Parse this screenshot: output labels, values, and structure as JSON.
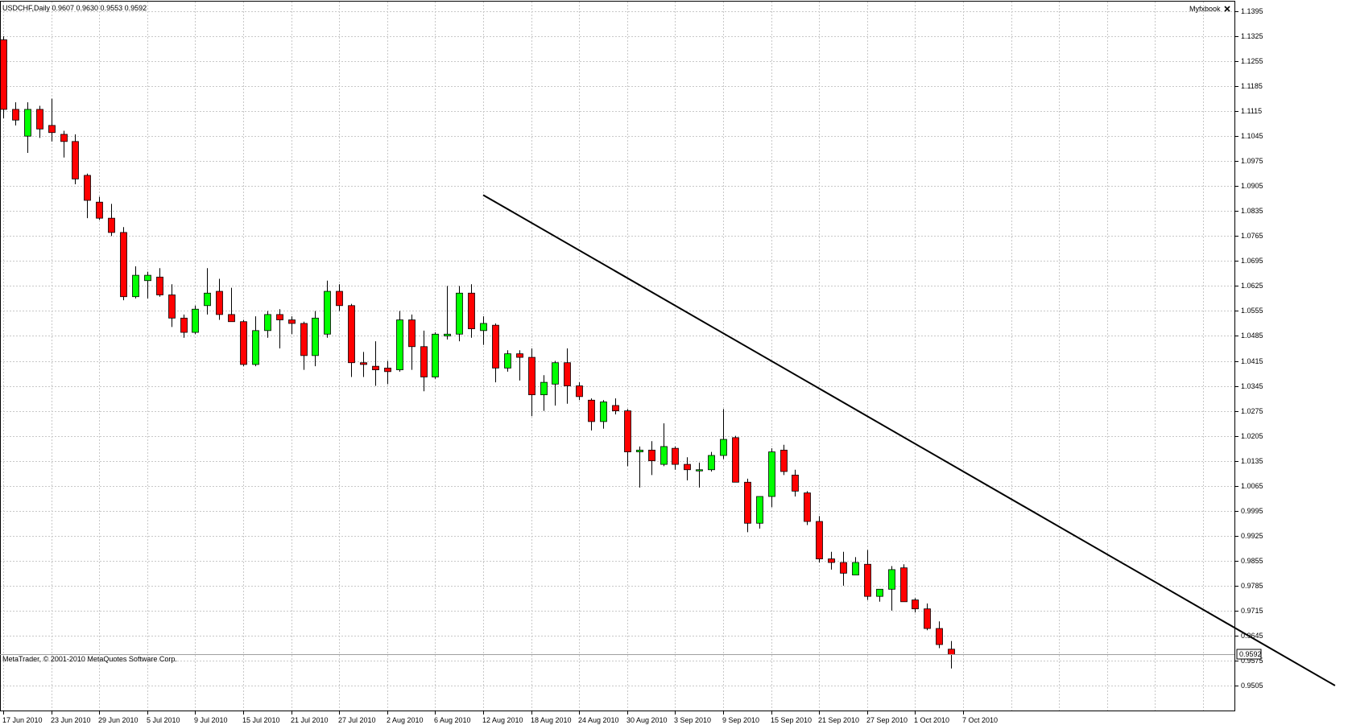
{
  "header": {
    "symbol_info": "USDCHF,Daily  0.9607 0.9630 0.9553 0.9592",
    "indicator_label": "Myfxbook",
    "close_icon": "close-icon"
  },
  "copyright": "MetaTrader, © 2001-2010 MetaQuotes Software Corp.",
  "colors": {
    "background": "#ffffff",
    "grid": "#c8c8c8",
    "bull": "#00ff00",
    "bear": "#ff0000",
    "wick": "#000000",
    "trendline": "#000000",
    "axis": "#000000"
  },
  "chart_data": {
    "type": "candlestick",
    "symbol": "USDCHF",
    "timeframe": "Daily",
    "ylim": [
      0.9505,
      1.1395
    ],
    "y_ticks": [
      "1.1395",
      "1.1325",
      "1.1255",
      "1.1185",
      "1.1115",
      "1.1045",
      "1.0975",
      "1.0905",
      "1.0835",
      "1.0765",
      "1.0695",
      "1.0625",
      "1.0555",
      "1.0485",
      "1.0415",
      "1.0345",
      "1.0275",
      "1.0205",
      "1.0135",
      "1.0065",
      "0.9995",
      "0.9925",
      "0.9855",
      "0.9785",
      "0.9715",
      "0.9645",
      "0.9575",
      "0.9505"
    ],
    "x_tick_labels": [
      "17 Jun 2010",
      "23 Jun 2010",
      "29 Jun 2010",
      "5 Jul 2010",
      "9 Jul 2010",
      "15 Jul 2010",
      "21 Jul 2010",
      "27 Jul 2010",
      "2 Aug 2010",
      "6 Aug 2010",
      "12 Aug 2010",
      "18 Aug 2010",
      "24 Aug 2010",
      "30 Aug 2010",
      "3 Sep 2010",
      "9 Sep 2010",
      "15 Sep 2010",
      "21 Sep 2010",
      "27 Sep 2010",
      "1 Oct 2010",
      "7 Oct 2010"
    ],
    "current_price": "0.9592",
    "candles": [
      {
        "o": 1.1315,
        "h": 1.1325,
        "l": 1.1095,
        "c": 1.112
      },
      {
        "o": 1.112,
        "h": 1.114,
        "l": 1.1075,
        "c": 1.109
      },
      {
        "o": 1.1045,
        "h": 1.114,
        "l": 1.0998,
        "c": 1.112
      },
      {
        "o": 1.112,
        "h": 1.113,
        "l": 1.104,
        "c": 1.1065
      },
      {
        "o": 1.1075,
        "h": 1.115,
        "l": 1.103,
        "c": 1.1055
      },
      {
        "o": 1.105,
        "h": 1.106,
        "l": 1.0985,
        "c": 1.103
      },
      {
        "o": 1.103,
        "h": 1.105,
        "l": 1.091,
        "c": 1.0925
      },
      {
        "o": 1.0935,
        "h": 1.094,
        "l": 1.0815,
        "c": 1.0865
      },
      {
        "o": 1.086,
        "h": 1.0875,
        "l": 1.081,
        "c": 1.0815
      },
      {
        "o": 1.0815,
        "h": 1.0855,
        "l": 1.0765,
        "c": 1.0775
      },
      {
        "o": 1.0775,
        "h": 1.079,
        "l": 1.0585,
        "c": 1.0595
      },
      {
        "o": 1.0595,
        "h": 1.068,
        "l": 1.059,
        "c": 1.0655
      },
      {
        "o": 1.064,
        "h": 1.0665,
        "l": 1.059,
        "c": 1.0655
      },
      {
        "o": 1.065,
        "h": 1.0675,
        "l": 1.0595,
        "c": 1.06
      },
      {
        "o": 1.06,
        "h": 1.063,
        "l": 1.051,
        "c": 1.0535
      },
      {
        "o": 1.0535,
        "h": 1.0545,
        "l": 1.048,
        "c": 1.0495
      },
      {
        "o": 1.0495,
        "h": 1.057,
        "l": 1.049,
        "c": 1.056
      },
      {
        "o": 1.057,
        "h": 1.0675,
        "l": 1.0545,
        "c": 1.0605
      },
      {
        "o": 1.061,
        "h": 1.0645,
        "l": 1.053,
        "c": 1.0545
      },
      {
        "o": 1.0545,
        "h": 1.062,
        "l": 1.0525,
        "c": 1.0525
      },
      {
        "o": 1.0525,
        "h": 1.053,
        "l": 1.04,
        "c": 1.0405
      },
      {
        "o": 1.0405,
        "h": 1.054,
        "l": 1.04,
        "c": 1.05
      },
      {
        "o": 1.05,
        "h": 1.0555,
        "l": 1.048,
        "c": 1.0545
      },
      {
        "o": 1.0545,
        "h": 1.056,
        "l": 1.045,
        "c": 1.053
      },
      {
        "o": 1.053,
        "h": 1.054,
        "l": 1.049,
        "c": 1.052
      },
      {
        "o": 1.052,
        "h": 1.0525,
        "l": 1.039,
        "c": 1.043
      },
      {
        "o": 1.043,
        "h": 1.0555,
        "l": 1.04,
        "c": 1.0535
      },
      {
        "o": 1.049,
        "h": 1.064,
        "l": 1.048,
        "c": 1.061
      },
      {
        "o": 1.061,
        "h": 1.063,
        "l": 1.0555,
        "c": 1.057
      },
      {
        "o": 1.057,
        "h": 1.0575,
        "l": 1.037,
        "c": 1.041
      },
      {
        "o": 1.041,
        "h": 1.044,
        "l": 1.037,
        "c": 1.0405
      },
      {
        "o": 1.04,
        "h": 1.047,
        "l": 1.0345,
        "c": 1.039
      },
      {
        "o": 1.0395,
        "h": 1.0415,
        "l": 1.035,
        "c": 1.0385
      },
      {
        "o": 1.039,
        "h": 1.0555,
        "l": 1.0385,
        "c": 1.053
      },
      {
        "o": 1.053,
        "h": 1.0545,
        "l": 1.039,
        "c": 1.0455
      },
      {
        "o": 1.0455,
        "h": 1.05,
        "l": 1.033,
        "c": 1.037
      },
      {
        "o": 1.037,
        "h": 1.0495,
        "l": 1.0365,
        "c": 1.049
      },
      {
        "o": 1.0485,
        "h": 1.0625,
        "l": 1.0475,
        "c": 1.049
      },
      {
        "o": 1.049,
        "h": 1.0625,
        "l": 1.047,
        "c": 1.0605
      },
      {
        "o": 1.0605,
        "h": 1.063,
        "l": 1.048,
        "c": 1.0505
      },
      {
        "o": 1.05,
        "h": 1.054,
        "l": 1.046,
        "c": 1.052
      },
      {
        "o": 1.0515,
        "h": 1.052,
        "l": 1.0355,
        "c": 1.0395
      },
      {
        "o": 1.0395,
        "h": 1.0445,
        "l": 1.0385,
        "c": 1.0435
      },
      {
        "o": 1.0435,
        "h": 1.0445,
        "l": 1.036,
        "c": 1.0425
      },
      {
        "o": 1.0425,
        "h": 1.045,
        "l": 1.026,
        "c": 1.032
      },
      {
        "o": 1.032,
        "h": 1.0375,
        "l": 1.0275,
        "c": 1.0355
      },
      {
        "o": 1.035,
        "h": 1.0415,
        "l": 1.029,
        "c": 1.041
      },
      {
        "o": 1.041,
        "h": 1.045,
        "l": 1.0295,
        "c": 1.0345
      },
      {
        "o": 1.0345,
        "h": 1.0355,
        "l": 1.0305,
        "c": 1.0315
      },
      {
        "o": 1.0305,
        "h": 1.031,
        "l": 1.022,
        "c": 1.0245
      },
      {
        "o": 1.0245,
        "h": 1.0305,
        "l": 1.0225,
        "c": 1.03
      },
      {
        "o": 1.029,
        "h": 1.031,
        "l": 1.0265,
        "c": 1.0275
      },
      {
        "o": 1.0275,
        "h": 1.028,
        "l": 1.012,
        "c": 1.016
      },
      {
        "o": 1.016,
        "h": 1.0175,
        "l": 1.006,
        "c": 1.0165
      },
      {
        "o": 1.0165,
        "h": 1.019,
        "l": 1.0095,
        "c": 1.0135
      },
      {
        "o": 1.0125,
        "h": 1.024,
        "l": 1.012,
        "c": 1.0175
      },
      {
        "o": 1.017,
        "h": 1.0175,
        "l": 1.011,
        "c": 1.0125
      },
      {
        "o": 1.0125,
        "h": 1.0145,
        "l": 1.008,
        "c": 1.011
      },
      {
        "o": 1.011,
        "h": 1.013,
        "l": 1.006,
        "c": 1.011
      },
      {
        "o": 1.011,
        "h": 1.016,
        "l": 1.0105,
        "c": 1.015
      },
      {
        "o": 1.015,
        "h": 1.028,
        "l": 1.014,
        "c": 1.0195
      },
      {
        "o": 1.02,
        "h": 1.0205,
        "l": 1.0075,
        "c": 1.0075
      },
      {
        "o": 1.0075,
        "h": 1.0085,
        "l": 0.9935,
        "c": 0.996
      },
      {
        "o": 0.996,
        "h": 1.0035,
        "l": 0.9945,
        "c": 1.0035
      },
      {
        "o": 1.0035,
        "h": 1.017,
        "l": 1.0005,
        "c": 1.016
      },
      {
        "o": 1.0165,
        "h": 1.018,
        "l": 1.0095,
        "c": 1.0105
      },
      {
        "o": 1.0095,
        "h": 1.011,
        "l": 1.0035,
        "c": 1.005
      },
      {
        "o": 1.0045,
        "h": 1.005,
        "l": 0.9955,
        "c": 0.9965
      },
      {
        "o": 0.9965,
        "h": 0.998,
        "l": 0.985,
        "c": 0.986
      },
      {
        "o": 0.986,
        "h": 0.988,
        "l": 0.983,
        "c": 0.985
      },
      {
        "o": 0.985,
        "h": 0.988,
        "l": 0.9785,
        "c": 0.982
      },
      {
        "o": 0.9815,
        "h": 0.9865,
        "l": 0.9815,
        "c": 0.985
      },
      {
        "o": 0.9845,
        "h": 0.9885,
        "l": 0.9745,
        "c": 0.9755
      },
      {
        "o": 0.9755,
        "h": 0.9775,
        "l": 0.974,
        "c": 0.9775
      },
      {
        "o": 0.9775,
        "h": 0.984,
        "l": 0.9715,
        "c": 0.983
      },
      {
        "o": 0.9835,
        "h": 0.9845,
        "l": 0.974,
        "c": 0.974
      },
      {
        "o": 0.9745,
        "h": 0.975,
        "l": 0.971,
        "c": 0.972
      },
      {
        "o": 0.972,
        "h": 0.9735,
        "l": 0.966,
        "c": 0.9665
      },
      {
        "o": 0.9665,
        "h": 0.9685,
        "l": 0.961,
        "c": 0.962
      },
      {
        "o": 0.9607,
        "h": 0.963,
        "l": 0.9553,
        "c": 0.9592
      }
    ],
    "trendline": {
      "from_index": 40,
      "from_price": 1.088,
      "to_index": 111,
      "to_price": 0.9505
    }
  }
}
